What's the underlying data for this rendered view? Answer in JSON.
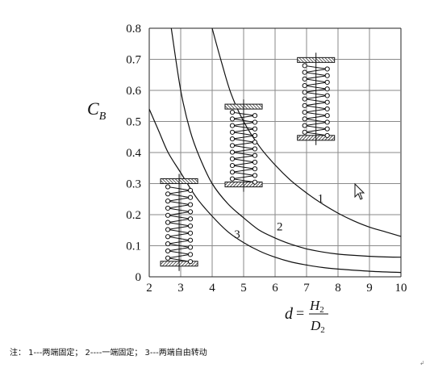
{
  "chart_data": {
    "type": "line",
    "title": "",
    "ylabel": {
      "main": "C",
      "sub": "B"
    },
    "xlabel": {
      "var": "d",
      "eq": "=",
      "num_main": "H",
      "num_sub": "2",
      "den_main": "D",
      "den_sub": "2"
    },
    "xlim": [
      2,
      10
    ],
    "ylim": [
      0,
      0.8
    ],
    "x_ticks": [
      2,
      3,
      4,
      5,
      6,
      7,
      8,
      9,
      10
    ],
    "y_ticks": [
      0,
      0.1,
      0.2,
      0.3,
      0.4,
      0.5,
      0.6,
      0.7,
      0.8
    ],
    "x_tick_labels": [
      "2",
      "3",
      "4",
      "5",
      "6",
      "7",
      "8",
      "9",
      "10"
    ],
    "y_tick_labels": [
      "0",
      "0.1",
      "0.2",
      "0.3",
      "0.4",
      "0.5",
      "0.6",
      "0.7",
      "0.8"
    ],
    "grid": true,
    "series": [
      {
        "name": "1",
        "x": [
          4.0,
          4.3,
          4.6,
          5.0,
          5.5,
          6.0,
          6.5,
          7.0,
          7.5,
          8.0,
          8.5,
          9.0,
          9.5,
          10.0
        ],
        "y": [
          0.8,
          0.69,
          0.59,
          0.5,
          0.42,
          0.36,
          0.31,
          0.27,
          0.235,
          0.205,
          0.18,
          0.16,
          0.145,
          0.13
        ]
      },
      {
        "name": "2",
        "x": [
          2.7,
          3.0,
          3.3,
          3.6,
          4.0,
          4.5,
          5.0,
          5.5,
          6.0,
          6.5,
          7.0,
          7.5,
          8.0,
          8.5,
          9.0,
          9.5,
          10.0
        ],
        "y": [
          0.8,
          0.6,
          0.47,
          0.385,
          0.3,
          0.235,
          0.19,
          0.15,
          0.125,
          0.105,
          0.09,
          0.08,
          0.073,
          0.069,
          0.066,
          0.064,
          0.063
        ]
      },
      {
        "name": "3",
        "x": [
          2.0,
          2.3,
          2.6,
          3.0,
          3.5,
          4.0,
          4.5,
          5.0,
          5.5,
          6.0,
          6.5,
          7.0,
          7.5,
          8.0,
          9.0,
          10.0
        ],
        "y": [
          0.54,
          0.47,
          0.4,
          0.335,
          0.255,
          0.195,
          0.145,
          0.11,
          0.083,
          0.063,
          0.048,
          0.038,
          0.03,
          0.025,
          0.018,
          0.014
        ]
      }
    ],
    "curve_label_points": [
      {
        "text": "1",
        "x": 7.35,
        "y": 0.24
      },
      {
        "text": "2",
        "x": 6.05,
        "y": 0.15
      },
      {
        "text": "3",
        "x": 4.7,
        "y": 0.125
      }
    ],
    "annotation_icons": [
      {
        "name": "spring-both-ends-fixed-icon",
        "x_center": 7.3,
        "y_top": 0.69,
        "y_bottom": 0.455
      },
      {
        "name": "spring-one-end-fixed-icon",
        "x_center": 5.0,
        "y_top": 0.54,
        "y_bottom": 0.305
      },
      {
        "name": "spring-both-ends-free-icon",
        "x_center": 2.95,
        "y_top": 0.3,
        "y_bottom": 0.05
      }
    ]
  },
  "note": {
    "text": "注： 1---两端固定； 2----一端固定； 3---两端自由转动"
  },
  "corner_mark": "↲",
  "colors": {
    "line": "#111111",
    "grid": "#8a8a8a",
    "hatch": "#333333"
  }
}
